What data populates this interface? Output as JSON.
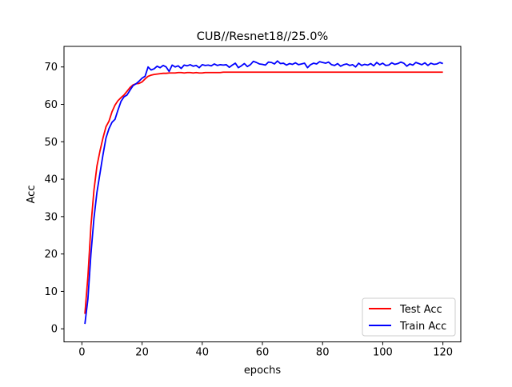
{
  "chart_data": {
    "type": "line",
    "title": "CUB//Resnet18//25.0%",
    "xlabel": "epochs",
    "ylabel": "Acc",
    "xlim": [
      -5.95,
      125.95
    ],
    "ylim": [
      -3.5,
      75.5
    ],
    "xticks": [
      0,
      20,
      40,
      60,
      80,
      100,
      120
    ],
    "yticks": [
      0,
      10,
      20,
      30,
      40,
      50,
      60,
      70
    ],
    "grid": false,
    "legend": {
      "position": "lower-right"
    },
    "series": [
      {
        "name": "Test Acc",
        "color": "#ff0000",
        "x": [
          1,
          2,
          3,
          4,
          5,
          6,
          7,
          8,
          9,
          10,
          11,
          12,
          13,
          14,
          15,
          16,
          17,
          18,
          19,
          20,
          21,
          22,
          23,
          24,
          25,
          26,
          27,
          28,
          29,
          30,
          31,
          32,
          33,
          34,
          35,
          36,
          37,
          38,
          39,
          40,
          41,
          42,
          43,
          44,
          45,
          46,
          47,
          48,
          49,
          50,
          51,
          52,
          53,
          54,
          55,
          56,
          57,
          58,
          59,
          60,
          61,
          62,
          63,
          64,
          65,
          66,
          67,
          68,
          69,
          70,
          71,
          72,
          73,
          74,
          75,
          76,
          77,
          78,
          79,
          80,
          81,
          82,
          83,
          84,
          85,
          86,
          87,
          88,
          89,
          90,
          91,
          92,
          93,
          94,
          95,
          96,
          97,
          98,
          99,
          100,
          101,
          102,
          103,
          104,
          105,
          106,
          107,
          108,
          109,
          110,
          111,
          112,
          113,
          114,
          115,
          116,
          117,
          118,
          119,
          120
        ],
        "values": [
          4.0,
          14.0,
          27.5,
          37.0,
          43.5,
          47.5,
          51.0,
          54.0,
          55.5,
          58.0,
          59.8,
          61.0,
          61.8,
          62.5,
          63.5,
          64.5,
          65.2,
          65.5,
          65.6,
          66.0,
          66.8,
          67.5,
          67.8,
          68.0,
          68.1,
          68.2,
          68.3,
          68.3,
          68.4,
          68.4,
          68.4,
          68.5,
          68.5,
          68.4,
          68.5,
          68.5,
          68.4,
          68.5,
          68.4,
          68.4,
          68.5,
          68.5,
          68.5,
          68.5,
          68.5,
          68.5,
          68.6,
          68.6,
          68.6,
          68.6,
          68.6,
          68.6,
          68.6,
          68.6,
          68.6,
          68.6,
          68.6,
          68.6,
          68.6,
          68.6,
          68.6,
          68.6,
          68.6,
          68.6,
          68.6,
          68.6,
          68.6,
          68.6,
          68.6,
          68.6,
          68.6,
          68.6,
          68.6,
          68.6,
          68.6,
          68.6,
          68.6,
          68.6,
          68.6,
          68.6,
          68.6,
          68.6,
          68.6,
          68.6,
          68.6,
          68.6,
          68.6,
          68.6,
          68.6,
          68.6,
          68.6,
          68.6,
          68.6,
          68.6,
          68.6,
          68.6,
          68.6,
          68.6,
          68.6,
          68.6,
          68.6,
          68.6,
          68.6,
          68.6,
          68.6,
          68.6,
          68.6,
          68.6,
          68.6,
          68.6,
          68.6,
          68.6,
          68.6,
          68.6,
          68.6,
          68.6,
          68.6,
          68.6,
          68.6,
          68.6
        ]
      },
      {
        "name": "Train Acc",
        "color": "#0000ff",
        "x": [
          1,
          2,
          3,
          4,
          5,
          6,
          7,
          8,
          9,
          10,
          11,
          12,
          13,
          14,
          15,
          16,
          17,
          18,
          19,
          20,
          21,
          22,
          23,
          24,
          25,
          26,
          27,
          28,
          29,
          30,
          31,
          32,
          33,
          34,
          35,
          36,
          37,
          38,
          39,
          40,
          41,
          42,
          43,
          44,
          45,
          46,
          47,
          48,
          49,
          50,
          51,
          52,
          53,
          54,
          55,
          56,
          57,
          58,
          59,
          60,
          61,
          62,
          63,
          64,
          65,
          66,
          67,
          68,
          69,
          70,
          71,
          72,
          73,
          74,
          75,
          76,
          77,
          78,
          79,
          80,
          81,
          82,
          83,
          84,
          85,
          86,
          87,
          88,
          89,
          90,
          91,
          92,
          93,
          94,
          95,
          96,
          97,
          98,
          99,
          100,
          101,
          102,
          103,
          104,
          105,
          106,
          107,
          108,
          109,
          110,
          111,
          112,
          113,
          114,
          115,
          116,
          117,
          118,
          119,
          120
        ],
        "values": [
          1.3,
          8.0,
          20.0,
          29.5,
          36.5,
          41.5,
          46.5,
          51.0,
          53.5,
          55.2,
          56.0,
          58.5,
          60.8,
          62.0,
          62.5,
          63.8,
          65.0,
          65.5,
          66.2,
          67.0,
          67.5,
          70.0,
          69.2,
          69.5,
          70.2,
          69.8,
          70.4,
          70.0,
          68.8,
          70.5,
          70.0,
          70.3,
          69.6,
          70.5,
          70.3,
          70.6,
          70.2,
          70.4,
          69.8,
          70.6,
          70.4,
          70.5,
          70.3,
          70.8,
          70.4,
          70.6,
          70.5,
          70.6,
          69.9,
          70.5,
          71.0,
          69.8,
          70.3,
          70.9,
          70.1,
          70.6,
          71.5,
          71.2,
          70.8,
          70.7,
          70.5,
          71.3,
          71.2,
          70.8,
          71.6,
          70.9,
          71.0,
          70.5,
          70.9,
          70.7,
          71.1,
          70.6,
          70.8,
          71.0,
          69.8,
          70.6,
          71.0,
          70.8,
          71.4,
          71.2,
          71.0,
          71.3,
          70.6,
          70.4,
          70.9,
          70.2,
          70.6,
          70.8,
          70.4,
          70.6,
          70.0,
          71.0,
          70.4,
          70.7,
          70.5,
          70.9,
          70.3,
          71.2,
          70.6,
          71.0,
          70.4,
          70.5,
          71.1,
          70.7,
          70.9,
          71.3,
          71.0,
          70.2,
          70.8,
          70.5,
          71.2,
          70.9,
          70.6,
          71.1,
          70.4,
          71.0,
          70.7,
          70.8,
          71.2,
          70.9
        ]
      }
    ]
  }
}
